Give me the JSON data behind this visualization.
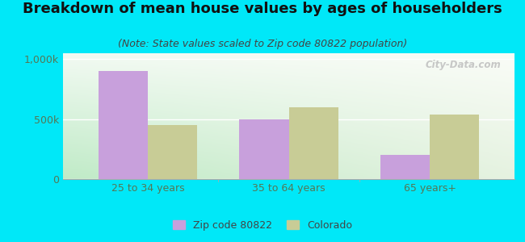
{
  "title": "Breakdown of mean house values by ages of householders",
  "subtitle": "(Note: State values scaled to Zip code 80822 population)",
  "categories": [
    "25 to 34 years",
    "35 to 64 years",
    "65 years+"
  ],
  "zip_values": [
    900000,
    500000,
    200000
  ],
  "state_values": [
    450000,
    600000,
    540000
  ],
  "zip_color": "#c8a0dc",
  "state_color": "#c8cc96",
  "background_outer": "#00e8f8",
  "background_inner_left": "#c8e8c8",
  "background_inner_right": "#f8f8f0",
  "ylim": [
    0,
    1050000
  ],
  "ytick_labels": [
    "0",
    "500k",
    "1,000k"
  ],
  "bar_width": 0.35,
  "legend_zip_label": "Zip code 80822",
  "legend_state_label": "Colorado",
  "watermark": "City-Data.com",
  "title_fontsize": 13,
  "subtitle_fontsize": 9,
  "tick_fontsize": 9,
  "legend_fontsize": 9,
  "title_color": "#111111",
  "subtitle_color": "#444444",
  "tick_color": "#557755"
}
